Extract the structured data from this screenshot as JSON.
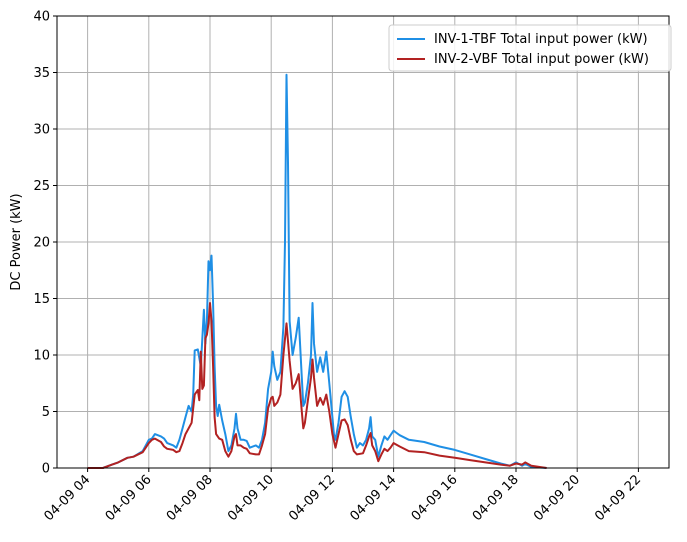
{
  "chart_data": {
    "type": "line",
    "ylabel": "DC Power (kW)",
    "ylim": [
      0,
      40
    ],
    "yticks": [
      0,
      5,
      10,
      15,
      20,
      25,
      30,
      35,
      40
    ],
    "ytick_labels": [
      "0",
      "5",
      "10",
      "15",
      "20",
      "25",
      "30",
      "35",
      "40"
    ],
    "xlim": [
      3.0,
      23.0
    ],
    "xticks": [
      4,
      6,
      8,
      10,
      12,
      14,
      16,
      18,
      20,
      22
    ],
    "xtick_labels": [
      "04-09 04",
      "04-09 06",
      "04-09 08",
      "04-09 10",
      "04-09 12",
      "04-09 14",
      "04-09 16",
      "04-09 18",
      "04-09 20",
      "04-09 22"
    ],
    "grid": true,
    "legend_position": "top-right",
    "series": [
      {
        "name": "INV-1-TBF Total input power (kW)",
        "color": "#1f8fe5",
        "points": [
          [
            4.0,
            0
          ],
          [
            4.5,
            0
          ],
          [
            4.8,
            0.3
          ],
          [
            5.0,
            0.5
          ],
          [
            5.3,
            0.9
          ],
          [
            5.5,
            1.0
          ],
          [
            5.8,
            1.5
          ],
          [
            6.0,
            2.5
          ],
          [
            6.1,
            2.6
          ],
          [
            6.2,
            3.0
          ],
          [
            6.4,
            2.8
          ],
          [
            6.5,
            2.6
          ],
          [
            6.6,
            2.2
          ],
          [
            6.8,
            2.0
          ],
          [
            6.9,
            1.8
          ],
          [
            7.0,
            2.5
          ],
          [
            7.1,
            3.5
          ],
          [
            7.2,
            4.5
          ],
          [
            7.3,
            5.5
          ],
          [
            7.4,
            5.0
          ],
          [
            7.45,
            6.5
          ],
          [
            7.5,
            10.4
          ],
          [
            7.6,
            10.5
          ],
          [
            7.7,
            9.0
          ],
          [
            7.8,
            14.0
          ],
          [
            7.85,
            11.0
          ],
          [
            7.9,
            13.0
          ],
          [
            7.95,
            18.3
          ],
          [
            8.0,
            17.5
          ],
          [
            8.05,
            18.8
          ],
          [
            8.1,
            14.5
          ],
          [
            8.15,
            9.0
          ],
          [
            8.2,
            5.5
          ],
          [
            8.25,
            4.6
          ],
          [
            8.3,
            5.6
          ],
          [
            8.4,
            4.2
          ],
          [
            8.5,
            3.0
          ],
          [
            8.6,
            1.5
          ],
          [
            8.7,
            2.0
          ],
          [
            8.8,
            3.5
          ],
          [
            8.85,
            4.8
          ],
          [
            8.9,
            3.5
          ],
          [
            9.0,
            2.5
          ],
          [
            9.1,
            2.5
          ],
          [
            9.2,
            2.4
          ],
          [
            9.3,
            1.8
          ],
          [
            9.5,
            2.0
          ],
          [
            9.6,
            1.8
          ],
          [
            9.7,
            2.5
          ],
          [
            9.8,
            4.0
          ],
          [
            9.9,
            7.0
          ],
          [
            10.0,
            8.5
          ],
          [
            10.05,
            10.3
          ],
          [
            10.1,
            9.0
          ],
          [
            10.2,
            7.8
          ],
          [
            10.3,
            8.5
          ],
          [
            10.4,
            12.5
          ],
          [
            10.45,
            20.0
          ],
          [
            10.5,
            34.8
          ],
          [
            10.55,
            27.0
          ],
          [
            10.6,
            13.0
          ],
          [
            10.7,
            10.0
          ],
          [
            10.8,
            11.5
          ],
          [
            10.9,
            13.3
          ],
          [
            11.0,
            8.0
          ],
          [
            11.05,
            5.5
          ],
          [
            11.1,
            5.8
          ],
          [
            11.2,
            7.5
          ],
          [
            11.3,
            10.0
          ],
          [
            11.35,
            14.6
          ],
          [
            11.4,
            11.0
          ],
          [
            11.5,
            8.5
          ],
          [
            11.6,
            9.8
          ],
          [
            11.7,
            8.5
          ],
          [
            11.8,
            10.3
          ],
          [
            11.9,
            7.5
          ],
          [
            12.0,
            4.5
          ],
          [
            12.05,
            3.0
          ],
          [
            12.1,
            2.5
          ],
          [
            12.2,
            4.0
          ],
          [
            12.3,
            6.3
          ],
          [
            12.4,
            6.8
          ],
          [
            12.5,
            6.3
          ],
          [
            12.6,
            4.5
          ],
          [
            12.7,
            3.0
          ],
          [
            12.8,
            1.8
          ],
          [
            12.9,
            2.2
          ],
          [
            13.0,
            2.0
          ],
          [
            13.1,
            2.5
          ],
          [
            13.2,
            3.5
          ],
          [
            13.25,
            4.5
          ],
          [
            13.3,
            2.8
          ],
          [
            13.4,
            2.5
          ],
          [
            13.5,
            1.0
          ],
          [
            13.6,
            2.0
          ],
          [
            13.7,
            2.8
          ],
          [
            13.8,
            2.5
          ],
          [
            13.9,
            2.9
          ],
          [
            14.0,
            3.3
          ],
          [
            14.1,
            3.1
          ],
          [
            14.2,
            2.9
          ],
          [
            14.5,
            2.5
          ],
          [
            15.0,
            2.3
          ],
          [
            15.5,
            1.9
          ],
          [
            16.0,
            1.6
          ],
          [
            16.5,
            1.2
          ],
          [
            17.0,
            0.8
          ],
          [
            17.5,
            0.4
          ],
          [
            17.8,
            0.2
          ],
          [
            18.0,
            0.5
          ],
          [
            18.2,
            0.2
          ],
          [
            18.3,
            0.35
          ],
          [
            18.5,
            0.1
          ],
          [
            19.0,
            0
          ]
        ]
      },
      {
        "name": "INV-2-VBF Total input power (kW)",
        "color": "#b22222",
        "points": [
          [
            4.0,
            0
          ],
          [
            4.5,
            0
          ],
          [
            4.8,
            0.3
          ],
          [
            5.0,
            0.5
          ],
          [
            5.3,
            0.9
          ],
          [
            5.5,
            1.0
          ],
          [
            5.8,
            1.4
          ],
          [
            6.0,
            2.2
          ],
          [
            6.1,
            2.5
          ],
          [
            6.2,
            2.6
          ],
          [
            6.4,
            2.3
          ],
          [
            6.5,
            1.9
          ],
          [
            6.6,
            1.7
          ],
          [
            6.8,
            1.6
          ],
          [
            6.9,
            1.4
          ],
          [
            7.0,
            1.5
          ],
          [
            7.1,
            2.2
          ],
          [
            7.2,
            3.0
          ],
          [
            7.3,
            3.5
          ],
          [
            7.4,
            4.0
          ],
          [
            7.5,
            6.5
          ],
          [
            7.6,
            6.9
          ],
          [
            7.65,
            6.0
          ],
          [
            7.7,
            10.3
          ],
          [
            7.75,
            7.0
          ],
          [
            7.8,
            7.3
          ],
          [
            7.85,
            11.5
          ],
          [
            7.9,
            11.8
          ],
          [
            7.95,
            12.8
          ],
          [
            8.0,
            14.6
          ],
          [
            8.05,
            13.0
          ],
          [
            8.1,
            9.0
          ],
          [
            8.15,
            4.5
          ],
          [
            8.2,
            3.0
          ],
          [
            8.3,
            2.6
          ],
          [
            8.4,
            2.5
          ],
          [
            8.5,
            1.5
          ],
          [
            8.6,
            1.0
          ],
          [
            8.7,
            1.5
          ],
          [
            8.8,
            2.8
          ],
          [
            8.85,
            3.0
          ],
          [
            8.9,
            2.0
          ],
          [
            9.0,
            2.0
          ],
          [
            9.1,
            1.8
          ],
          [
            9.2,
            1.7
          ],
          [
            9.3,
            1.3
          ],
          [
            9.5,
            1.2
          ],
          [
            9.6,
            1.2
          ],
          [
            9.7,
            2.0
          ],
          [
            9.8,
            3.0
          ],
          [
            9.9,
            5.3
          ],
          [
            10.0,
            6.2
          ],
          [
            10.05,
            6.3
          ],
          [
            10.1,
            5.5
          ],
          [
            10.2,
            5.8
          ],
          [
            10.3,
            6.5
          ],
          [
            10.4,
            10.0
          ],
          [
            10.5,
            12.8
          ],
          [
            10.6,
            9.5
          ],
          [
            10.7,
            7.0
          ],
          [
            10.8,
            7.5
          ],
          [
            10.9,
            8.3
          ],
          [
            11.0,
            5.0
          ],
          [
            11.05,
            3.5
          ],
          [
            11.1,
            4.0
          ],
          [
            11.2,
            6.0
          ],
          [
            11.3,
            8.0
          ],
          [
            11.35,
            9.6
          ],
          [
            11.4,
            8.0
          ],
          [
            11.5,
            5.5
          ],
          [
            11.6,
            6.2
          ],
          [
            11.7,
            5.6
          ],
          [
            11.8,
            6.5
          ],
          [
            11.9,
            5.0
          ],
          [
            12.0,
            3.0
          ],
          [
            12.1,
            1.8
          ],
          [
            12.2,
            3.0
          ],
          [
            12.3,
            4.2
          ],
          [
            12.4,
            4.3
          ],
          [
            12.5,
            3.8
          ],
          [
            12.6,
            2.5
          ],
          [
            12.7,
            1.5
          ],
          [
            12.8,
            1.2
          ],
          [
            13.0,
            1.3
          ],
          [
            13.1,
            2.0
          ],
          [
            13.2,
            2.8
          ],
          [
            13.25,
            3.1
          ],
          [
            13.3,
            2.0
          ],
          [
            13.4,
            1.5
          ],
          [
            13.5,
            0.6
          ],
          [
            13.6,
            1.2
          ],
          [
            13.7,
            1.7
          ],
          [
            13.8,
            1.5
          ],
          [
            13.9,
            1.8
          ],
          [
            14.0,
            2.2
          ],
          [
            14.2,
            1.9
          ],
          [
            14.5,
            1.5
          ],
          [
            15.0,
            1.4
          ],
          [
            15.5,
            1.1
          ],
          [
            16.0,
            0.9
          ],
          [
            16.5,
            0.7
          ],
          [
            17.0,
            0.5
          ],
          [
            17.5,
            0.3
          ],
          [
            17.8,
            0.2
          ],
          [
            18.0,
            0.4
          ],
          [
            18.2,
            0.3
          ],
          [
            18.3,
            0.5
          ],
          [
            18.5,
            0.2
          ],
          [
            19.0,
            0
          ]
        ]
      }
    ]
  }
}
